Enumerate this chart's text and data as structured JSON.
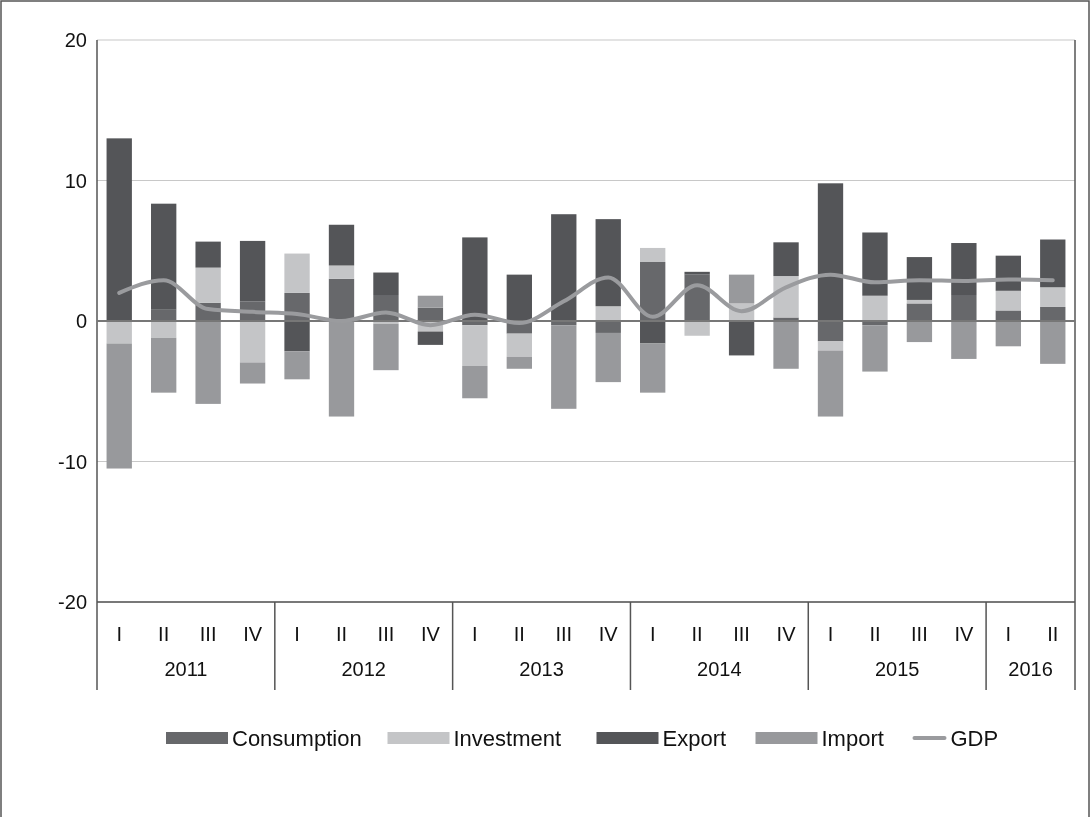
{
  "chart_data": {
    "type": "bar",
    "stacked": true,
    "legend": "bottom",
    "grid": "y",
    "categories": [
      "I",
      "II",
      "III",
      "IV",
      "I",
      "II",
      "III",
      "IV",
      "I",
      "II",
      "III",
      "IV",
      "I",
      "II",
      "III",
      "IV",
      "I",
      "II",
      "III",
      "IV",
      "I",
      "II"
    ],
    "annotations": [
      "2011",
      "2012",
      "2013",
      "2014",
      "2015",
      "2016"
    ],
    "ylim": [
      -20,
      20
    ],
    "yticks": [
      -20,
      -10,
      0,
      10,
      20
    ],
    "series": [
      {
        "name": "Consumption",
        "color": "#67686b",
        "values": [
          0,
          0.8,
          1.3,
          1.4,
          2.0,
          3.0,
          1.85,
          0.95,
          -0.3,
          -0.9,
          -0.3,
          -0.85,
          4.2,
          3.3,
          0,
          0.25,
          -1.45,
          -0.3,
          1.25,
          1.85,
          0.75,
          1.0
        ]
      },
      {
        "name": "Investment",
        "color": "#c4c5c7",
        "values": [
          -1.6,
          -1.2,
          2.5,
          -2.95,
          2.8,
          0.95,
          -0.2,
          -0.75,
          -2.9,
          -1.65,
          0,
          1.05,
          1.0,
          -1.05,
          1.25,
          2.95,
          -0.65,
          1.8,
          0.25,
          0,
          1.4,
          1.4
        ]
      },
      {
        "name": "Export",
        "color": "#545558",
        "values": [
          13.0,
          7.55,
          1.85,
          4.3,
          -2.15,
          2.9,
          1.6,
          -0.95,
          5.95,
          3.3,
          7.6,
          6.2,
          -1.6,
          0.2,
          -2.45,
          2.4,
          9.8,
          4.5,
          3.05,
          3.7,
          2.5,
          3.4
        ]
      },
      {
        "name": "Import",
        "color": "#98999c",
        "values": [
          -8.9,
          -3.9,
          -5.9,
          -1.5,
          -2.0,
          -6.8,
          -3.3,
          0.85,
          -2.3,
          -0.85,
          -5.95,
          -3.5,
          -3.5,
          0,
          2.05,
          -3.4,
          -4.7,
          -3.3,
          -1.5,
          -2.7,
          -1.8,
          -3.05
        ]
      },
      {
        "name": "GDP",
        "type": "line",
        "color": "#9a9b9e",
        "values": [
          2.0,
          2.9,
          0.85,
          0.65,
          0.5,
          0.0,
          0.6,
          -0.3,
          0.45,
          -0.15,
          1.4,
          3.1,
          0.3,
          2.55,
          0.7,
          2.4,
          3.3,
          2.75,
          2.9,
          2.85,
          2.95,
          2.9
        ]
      }
    ]
  }
}
